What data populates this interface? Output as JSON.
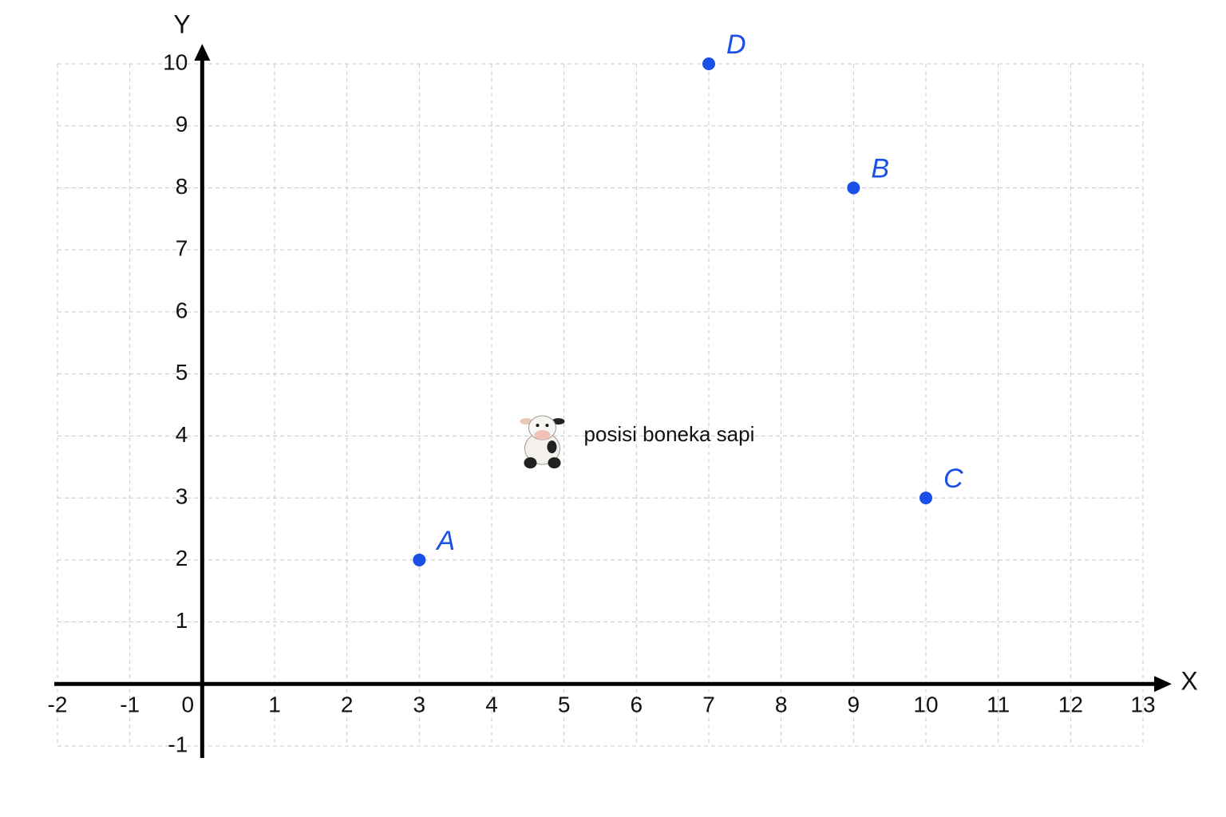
{
  "chart_data": {
    "type": "scatter",
    "x_label": "X",
    "y_label": "Y",
    "xlim": [
      -2,
      13
    ],
    "ylim": [
      -1,
      10
    ],
    "xticks": [
      -2,
      -1,
      0,
      1,
      2,
      3,
      4,
      5,
      6,
      7,
      8,
      9,
      10,
      11,
      12,
      13
    ],
    "yticks": [
      -1,
      1,
      2,
      3,
      4,
      5,
      6,
      7,
      8,
      9,
      10
    ],
    "grid": true,
    "color": "#1a4fe8",
    "points": [
      {
        "label": "A",
        "x": 3,
        "y": 2
      },
      {
        "label": "B",
        "x": 9,
        "y": 8
      },
      {
        "label": "C",
        "x": 10,
        "y": 3
      },
      {
        "label": "D",
        "x": 7,
        "y": 10
      }
    ],
    "annotations": [
      {
        "text": "posisi boneka sapi",
        "x": 4.7,
        "y": 3.9
      }
    ]
  }
}
